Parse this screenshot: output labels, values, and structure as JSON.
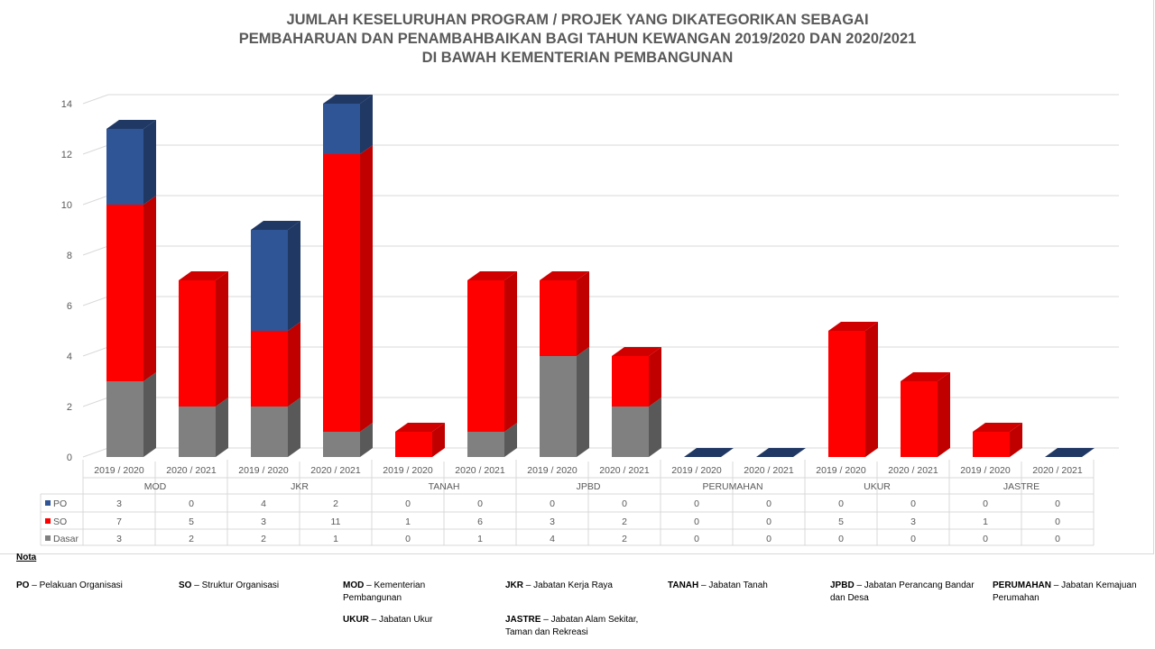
{
  "title_lines": [
    "JUMLAH KESELURUHAN PROGRAM / PROJEK YANG DIKATEGORIKAN SEBAGAI",
    "PEMBAHARUAN DAN PENAMBAHBAIKAN BAGI TAHUN KEWANGAN 2019/2020 DAN 2020/2021",
    "DI BAWAH KEMENTERIAN PEMBANGUNAN"
  ],
  "colors": {
    "PO": "#2F5597",
    "SO": "#FF0000",
    "Dasar": "#808080"
  },
  "chart_data": {
    "type": "bar",
    "stacked": true,
    "3d": true,
    "title": "JUMLAH KESELURUHAN PROGRAM / PROJEK YANG DIKATEGORIKAN SEBAGAI PEMBAHARUAN DAN PENAMBAHBAIKAN BAGI TAHUN KEWANGAN 2019/2020 DAN 2020/2021 DI BAWAH KEMENTERIAN PEMBANGUNAN",
    "groups": [
      "MOD",
      "JKR",
      "TANAH",
      "JPBD",
      "PERUMAHAN",
      "UKUR",
      "JASTRE"
    ],
    "years": [
      "2019 / 2020",
      "2020 / 2021"
    ],
    "ylim": [
      0,
      14
    ],
    "yticks": [
      "0",
      "2",
      "4",
      "6",
      "8",
      "10",
      "12",
      "14"
    ],
    "grid": true,
    "legend": "data-table",
    "series": [
      {
        "name": "PO",
        "values": [
          3,
          0,
          4,
          2,
          0,
          0,
          0,
          0,
          0,
          0,
          0,
          0,
          0,
          0
        ]
      },
      {
        "name": "SO",
        "values": [
          7,
          5,
          3,
          11,
          1,
          6,
          3,
          2,
          0,
          0,
          5,
          3,
          1,
          0
        ]
      },
      {
        "name": "Dasar",
        "values": [
          3,
          2,
          2,
          1,
          0,
          1,
          4,
          2,
          0,
          0,
          0,
          0,
          0,
          0
        ]
      }
    ]
  },
  "nota": {
    "heading": "Nota",
    "items": [
      {
        "abbr": "PO",
        "desc": "– Pelakuan Organisasi"
      },
      {
        "abbr": "SO",
        "desc": "– Struktur Organisasi"
      },
      {
        "abbr": "MOD",
        "desc": "– Kementerian Pembangunan"
      },
      {
        "abbr": "JKR",
        "desc": "– Jabatan Kerja Raya"
      },
      {
        "abbr": "TANAH",
        "desc": "– Jabatan Tanah"
      },
      {
        "abbr": "JPBD",
        "desc": "– Jabatan Perancang Bandar dan Desa"
      },
      {
        "abbr": "PERUMAHAN",
        "desc": "– Jabatan Kemajuan Perumahan"
      },
      {
        "abbr": "UKUR",
        "desc": "– Jabatan Ukur"
      },
      {
        "abbr": "JASTRE",
        "desc": "– Jabatan Alam Sekitar, Taman dan Rekreasi"
      }
    ]
  }
}
